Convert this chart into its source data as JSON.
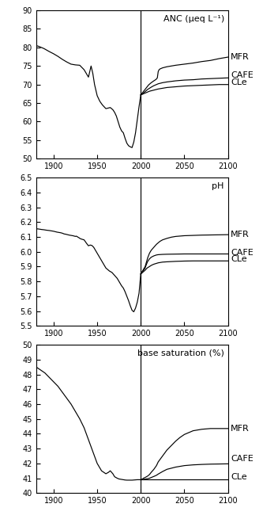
{
  "title_anc": "ANC (μeq L⁻¹)",
  "title_ph": "pH",
  "title_bs": "base saturation (%)",
  "labels": [
    "MFR",
    "CAFE",
    "CLe"
  ],
  "year_start": 1880,
  "year_end": 2100,
  "vline_year": 2000,
  "anc": {
    "ylim": [
      50,
      90
    ],
    "yticks": [
      50,
      55,
      60,
      65,
      70,
      75,
      80,
      85,
      90
    ],
    "shared_hist": {
      "years": [
        1880,
        1883,
        1886,
        1889,
        1892,
        1895,
        1900,
        1905,
        1910,
        1915,
        1920,
        1925,
        1930,
        1935,
        1940,
        1943,
        1945,
        1947,
        1950,
        1953,
        1956,
        1960,
        1965,
        1968,
        1970,
        1972,
        1974,
        1976,
        1978,
        1980,
        1982,
        1984,
        1986,
        1988,
        1990,
        1992,
        1994,
        1996,
        1998,
        2000
      ],
      "values": [
        80.5,
        80.3,
        80.0,
        79.7,
        79.3,
        78.9,
        78.3,
        77.6,
        76.8,
        76.1,
        75.5,
        75.3,
        75.2,
        74.0,
        72.0,
        75.0,
        73.0,
        70.0,
        67.0,
        65.5,
        64.5,
        63.5,
        63.8,
        63.2,
        62.5,
        61.5,
        60.0,
        58.5,
        57.5,
        57.0,
        55.5,
        54.2,
        53.5,
        53.2,
        53.0,
        54.5,
        57.0,
        60.5,
        64.0,
        67.2
      ]
    },
    "MFR": {
      "years": [
        2000,
        2001,
        2002,
        2003,
        2004,
        2005,
        2006,
        2007,
        2008,
        2009,
        2010,
        2012,
        2015,
        2017,
        2018,
        2019,
        2020,
        2021,
        2022,
        2025,
        2030,
        2040,
        2050,
        2060,
        2070,
        2080,
        2090,
        2100
      ],
      "values": [
        67.2,
        67.5,
        67.8,
        68.1,
        68.4,
        68.7,
        69.0,
        69.3,
        69.6,
        69.9,
        70.1,
        70.5,
        71.0,
        71.3,
        71.5,
        71.8,
        73.5,
        74.0,
        74.2,
        74.5,
        74.8,
        75.2,
        75.5,
        75.8,
        76.2,
        76.5,
        77.0,
        77.4
      ]
    },
    "CAFE": {
      "years": [
        2000,
        2002,
        2004,
        2006,
        2008,
        2010,
        2012,
        2015,
        2018,
        2020,
        2025,
        2030,
        2040,
        2050,
        2060,
        2070,
        2080,
        2090,
        2100
      ],
      "values": [
        67.2,
        67.5,
        67.9,
        68.3,
        68.7,
        69.0,
        69.3,
        69.7,
        70.0,
        70.2,
        70.5,
        70.7,
        71.0,
        71.2,
        71.3,
        71.5,
        71.6,
        71.7,
        71.8
      ]
    },
    "CLe": {
      "years": [
        2000,
        2002,
        2004,
        2006,
        2008,
        2010,
        2015,
        2020,
        2025,
        2030,
        2040,
        2050,
        2060,
        2070,
        2080,
        2090,
        2100
      ],
      "values": [
        67.2,
        67.4,
        67.6,
        67.8,
        68.0,
        68.2,
        68.5,
        68.8,
        69.0,
        69.2,
        69.4,
        69.6,
        69.7,
        69.8,
        69.9,
        70.0,
        70.0
      ]
    }
  },
  "ph": {
    "ylim": [
      5.5,
      6.5
    ],
    "yticks": [
      5.5,
      5.6,
      5.7,
      5.8,
      5.9,
      6.0,
      6.1,
      6.2,
      6.3,
      6.4,
      6.5
    ],
    "shared_hist": {
      "years": [
        1880,
        1883,
        1886,
        1889,
        1892,
        1895,
        1898,
        1900,
        1902,
        1904,
        1906,
        1908,
        1910,
        1912,
        1914,
        1916,
        1918,
        1920,
        1922,
        1924,
        1925,
        1926,
        1927,
        1928,
        1929,
        1930,
        1932,
        1935,
        1938,
        1940,
        1942,
        1944,
        1946,
        1948,
        1950,
        1953,
        1956,
        1960,
        1964,
        1967,
        1970,
        1973,
        1976,
        1978,
        1980,
        1982,
        1984,
        1986,
        1988,
        1990,
        1992,
        1994,
        1996,
        1998,
        2000
      ],
      "values": [
        6.155,
        6.153,
        6.15,
        6.148,
        6.145,
        6.143,
        6.14,
        6.138,
        6.135,
        6.132,
        6.13,
        6.128,
        6.125,
        6.12,
        6.118,
        6.115,
        6.112,
        6.11,
        6.108,
        6.105,
        6.103,
        6.105,
        6.102,
        6.098,
        6.095,
        6.09,
        6.085,
        6.08,
        6.055,
        6.04,
        6.045,
        6.042,
        6.03,
        6.01,
        5.99,
        5.96,
        5.93,
        5.89,
        5.87,
        5.86,
        5.84,
        5.82,
        5.79,
        5.77,
        5.755,
        5.73,
        5.7,
        5.67,
        5.635,
        5.605,
        5.595,
        5.62,
        5.66,
        5.72,
        5.85
      ]
    },
    "MFR": {
      "years": [
        2000,
        2001,
        2002,
        2003,
        2004,
        2005,
        2006,
        2007,
        2008,
        2010,
        2012,
        2015,
        2018,
        2020,
        2022,
        2025,
        2030,
        2035,
        2040,
        2050,
        2060,
        2070,
        2080,
        2090,
        2100
      ],
      "values": [
        5.85,
        5.86,
        5.87,
        5.88,
        5.89,
        5.9,
        5.92,
        5.94,
        5.96,
        5.99,
        6.01,
        6.03,
        6.05,
        6.06,
        6.07,
        6.08,
        6.09,
        6.098,
        6.103,
        6.108,
        6.11,
        6.112,
        6.113,
        6.114,
        6.115
      ]
    },
    "CAFE": {
      "years": [
        2000,
        2001,
        2002,
        2003,
        2004,
        2005,
        2006,
        2007,
        2008,
        2010,
        2012,
        2015,
        2018,
        2020,
        2025,
        2030,
        2040,
        2050,
        2060,
        2070,
        2080,
        2090,
        2100
      ],
      "values": [
        5.85,
        5.858,
        5.866,
        5.874,
        5.882,
        5.89,
        5.907,
        5.922,
        5.935,
        5.952,
        5.963,
        5.972,
        5.978,
        5.98,
        5.982,
        5.983,
        5.984,
        5.985,
        5.985,
        5.985,
        5.985,
        5.985,
        5.985
      ]
    },
    "CLe": {
      "years": [
        2000,
        2001,
        2002,
        2003,
        2004,
        2005,
        2006,
        2007,
        2008,
        2010,
        2012,
        2015,
        2020,
        2025,
        2030,
        2040,
        2050,
        2060,
        2070,
        2080,
        2090,
        2100
      ],
      "values": [
        5.85,
        5.855,
        5.86,
        5.865,
        5.87,
        5.875,
        5.882,
        5.888,
        5.893,
        5.9,
        5.908,
        5.916,
        5.925,
        5.93,
        5.932,
        5.935,
        5.937,
        5.938,
        5.938,
        5.938,
        5.938,
        5.938
      ]
    }
  },
  "bs": {
    "ylim": [
      40,
      50
    ],
    "yticks": [
      40,
      41,
      42,
      43,
      44,
      45,
      46,
      47,
      48,
      49,
      50
    ],
    "shared_hist": {
      "years": [
        1880,
        1885,
        1890,
        1895,
        1900,
        1905,
        1910,
        1915,
        1920,
        1925,
        1930,
        1935,
        1940,
        1945,
        1950,
        1955,
        1960,
        1963,
        1965,
        1968,
        1970,
        1973,
        1975,
        1978,
        1980,
        1982,
        1984,
        1986,
        1988,
        1990,
        1992,
        1994,
        1996,
        1998,
        2000
      ],
      "values": [
        48.5,
        48.3,
        48.1,
        47.8,
        47.5,
        47.2,
        46.8,
        46.4,
        46.0,
        45.5,
        45.0,
        44.4,
        43.6,
        42.8,
        42.0,
        41.5,
        41.3,
        41.4,
        41.5,
        41.3,
        41.1,
        41.0,
        40.95,
        40.92,
        40.9,
        40.88,
        40.87,
        40.87,
        40.87,
        40.87,
        40.88,
        40.89,
        40.9,
        40.9,
        40.9
      ]
    },
    "MFR": {
      "years": [
        2000,
        2001,
        2002,
        2003,
        2005,
        2008,
        2010,
        2012,
        2015,
        2018,
        2020,
        2025,
        2030,
        2035,
        2040,
        2045,
        2050,
        2060,
        2070,
        2080,
        2090,
        2100
      ],
      "values": [
        40.9,
        40.92,
        40.95,
        41.0,
        41.05,
        41.15,
        41.25,
        41.4,
        41.6,
        41.85,
        42.1,
        42.5,
        42.9,
        43.2,
        43.5,
        43.75,
        43.95,
        44.2,
        44.3,
        44.35,
        44.35,
        44.35
      ]
    },
    "CAFE": {
      "years": [
        2000,
        2001,
        2002,
        2003,
        2005,
        2008,
        2010,
        2012,
        2015,
        2018,
        2020,
        2025,
        2030,
        2040,
        2050,
        2060,
        2070,
        2080,
        2090,
        2100
      ],
      "values": [
        40.9,
        40.905,
        40.91,
        40.92,
        40.94,
        40.97,
        41.0,
        41.05,
        41.12,
        41.2,
        41.28,
        41.45,
        41.6,
        41.75,
        41.85,
        41.9,
        41.93,
        41.95,
        41.96,
        41.97
      ]
    },
    "CLe": {
      "years": [
        2000,
        2010,
        2020,
        2030,
        2040,
        2050,
        2060,
        2070,
        2080,
        2090,
        2100
      ],
      "values": [
        40.9,
        40.9,
        40.9,
        40.9,
        40.9,
        40.9,
        40.9,
        40.9,
        40.9,
        40.9,
        40.9
      ]
    }
  },
  "line_color": "#000000",
  "vline_color": "#000000",
  "bg_color": "#ffffff",
  "tick_fontsize": 7,
  "annotation_fontsize": 8
}
